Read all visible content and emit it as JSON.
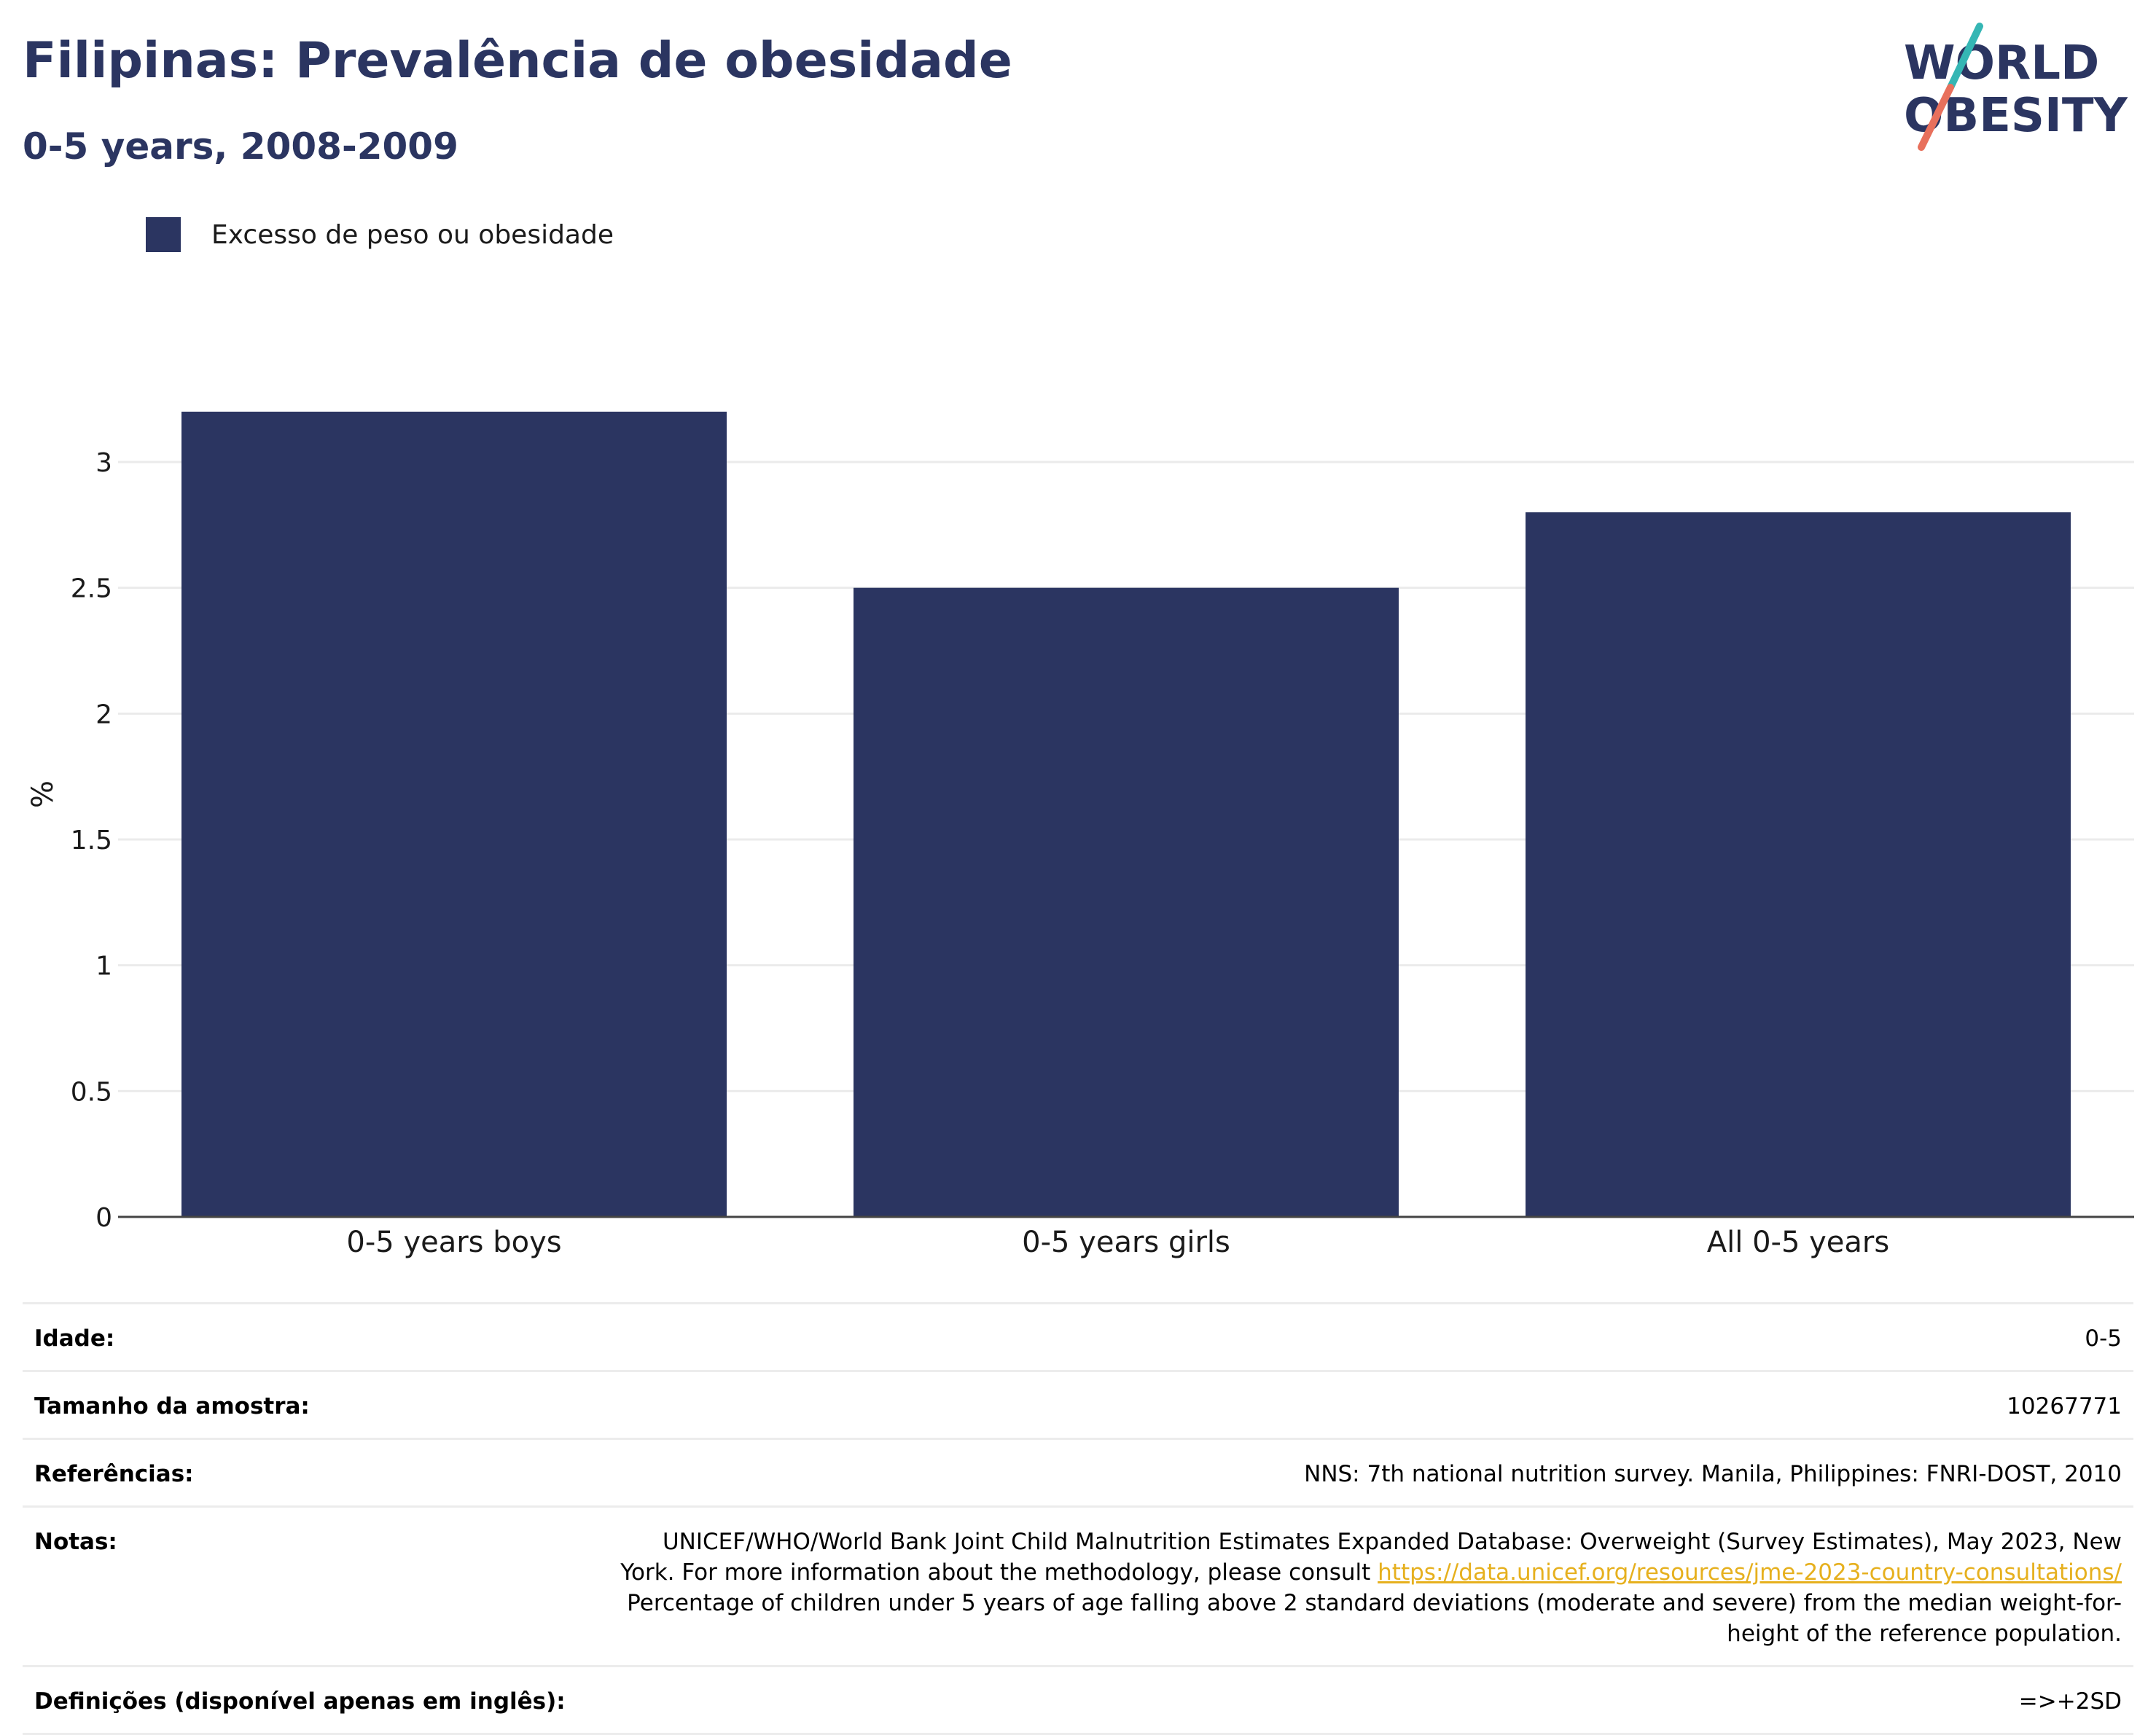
{
  "header": {
    "title": "Filipinas: Prevalência de obesidade",
    "subtitle": "0-5 years, 2008-2009"
  },
  "logo": {
    "line1": "WORLD",
    "line2": "OBESITY",
    "colors": {
      "text": "#2b3561",
      "slash_top": "#35b6b4",
      "slash_bottom": "#e8705c"
    }
  },
  "colors": {
    "bar": "#2b3561",
    "grid": "#ebebeb",
    "axis": "#444444",
    "title": "#2b3561",
    "link": "#e6b01e"
  },
  "chart_data": {
    "type": "bar",
    "categories": [
      "0-5 years boys",
      "0-5 years girls",
      "All 0-5 years"
    ],
    "series": [
      {
        "name": "Excesso de peso ou obesidade",
        "values": [
          3.2,
          2.5,
          2.8
        ]
      }
    ],
    "ylabel": "%",
    "xlabel": "",
    "ylim": [
      0,
      3.2
    ],
    "yticks": [
      0,
      0.5,
      1,
      1.5,
      2,
      2.5,
      3
    ],
    "ytick_labels": [
      "0",
      "0.5",
      "1",
      "1.5",
      "2",
      "2.5",
      "3"
    ],
    "grid": true,
    "legend_position": "top-left"
  },
  "table": {
    "rows": [
      {
        "label": "Idade:",
        "value": "0-5"
      },
      {
        "label": "Tamanho da amostra:",
        "value": "10267771"
      },
      {
        "label": "Referências:",
        "value": "NNS: 7th national nutrition survey. Manila, Philippines: FNRI-DOST, 2010"
      },
      {
        "label": "Notas:",
        "value_before_link": "UNICEF/WHO/World Bank Joint Child Malnutrition Estimates Expanded Database: Overweight (Survey Estimates), May 2023, New York. For more information about the methodology, please consult ",
        "link": "https://data.unicef.org/resources/jme-2023-country-consultations/",
        "value_after_link": " Percentage of children under 5 years of age falling above 2 standard deviations (moderate and severe) from the median weight-for-height of the reference population."
      },
      {
        "label": "Definições (disponível apenas em inglês):",
        "value": "=>+2SD"
      }
    ]
  }
}
